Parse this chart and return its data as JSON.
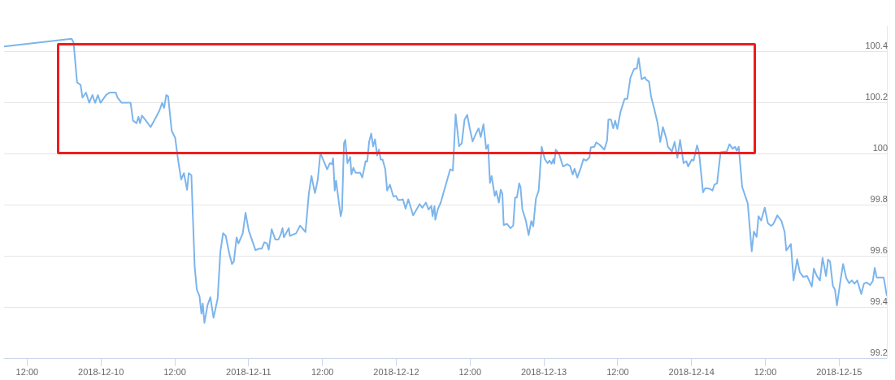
{
  "chart_data": {
    "type": "line",
    "color": "#7cb5ec",
    "marker": "none",
    "grid": "y",
    "legend": false,
    "xlim": [
      "2018-12-09T08:15",
      "2018-12-15T07:45"
    ],
    "xticks": [
      {
        "value": "2018-12-09T12:00",
        "label": "12:00"
      },
      "2018-12-10",
      {
        "value": "2018-12-10T12:00",
        "label": "12:00"
      },
      "2018-12-11",
      {
        "value": "2018-12-11T12:00",
        "label": "12:00"
      },
      "2018-12-12",
      {
        "value": "2018-12-12T12:00",
        "label": "12:00"
      },
      "2018-12-13",
      {
        "value": "2018-12-13T12:00",
        "label": "12:00"
      },
      "2018-12-14",
      {
        "value": "2018-12-14T12:00",
        "label": "12:00"
      },
      "2018-12-15"
    ],
    "ylim": [
      99.2,
      100.5
    ],
    "yticks": [
      99.2,
      99.4,
      99.6,
      99.8,
      100,
      100.2,
      100.4
    ],
    "x": [
      "2018-12-09T08:15",
      "2018-12-09T19:14",
      "2018-12-09T19:33",
      "2018-12-09T20:07",
      "2018-12-09T20:41",
      "2018-12-09T21:00",
      "2018-12-09T21:34",
      "2018-12-09T22:05",
      "2018-12-09T22:37",
      "2018-12-09T23:03",
      "2018-12-09T23:30",
      "2018-12-09T23:56",
      "2018-12-10T00:49",
      "2018-12-10T01:23",
      "2018-12-10T02:24",
      "2018-12-10T02:42",
      "2018-12-10T03:22",
      "2018-12-10T04:49",
      "2018-12-10T05:13",
      "2018-12-10T05:47",
      "2018-12-10T06:06",
      "2018-12-10T06:21",
      "2018-12-10T06:40",
      "2018-12-10T07:19",
      "2018-12-10T08:04",
      "2018-12-10T08:52",
      "2018-12-10T09:31",
      "2018-12-10T09:57",
      "2018-12-10T10:16",
      "2018-12-10T10:37",
      "2018-12-10T10:55",
      "2018-12-10T11:30",
      "2018-12-10T12:04",
      "2018-12-10T12:30",
      "2018-12-10T13:02",
      "2018-12-10T13:29",
      "2018-12-10T14:00",
      "2018-12-10T14:16",
      "2018-12-10T14:42",
      "2018-12-10T15:14",
      "2018-12-10T15:35",
      "2018-12-10T16:01",
      "2018-12-10T16:20",
      "2018-12-10T16:33",
      "2018-12-10T16:49",
      "2018-12-10T17:20",
      "2018-12-10T17:47",
      "2018-12-10T18:18",
      "2018-12-10T18:58",
      "2018-12-10T19:25",
      "2018-12-10T19:51",
      "2018-12-10T20:17",
      "2018-12-10T20:52",
      "2018-12-10T21:18",
      "2018-12-10T21:36",
      "2018-12-10T22:03",
      "2018-12-10T22:21",
      "2018-12-10T23:03",
      "2018-12-10T23:30",
      "2018-12-11T00:02",
      "2018-12-11T01:07",
      "2018-12-11T01:41",
      "2018-12-11T02:08",
      "2018-12-11T02:34",
      "2018-12-11T03:00",
      "2018-12-11T03:16",
      "2018-12-11T03:45",
      "2018-12-11T04:20",
      "2018-12-11T04:51",
      "2018-12-11T05:13",
      "2018-12-11T05:31",
      "2018-12-11T05:44",
      "2018-12-11T06:32",
      "2018-12-11T06:42",
      "2018-12-11T07:43",
      "2018-12-11T08:22",
      "2018-12-11T09:15",
      "2018-12-11T09:47",
      "2018-12-11T10:13",
      "2018-12-11T10:47",
      "2018-12-11T11:14",
      "2018-12-11T11:40",
      "2018-12-11T12:46",
      "2018-12-11T13:13",
      "2018-12-11T13:33",
      "2018-12-11T13:44",
      "2018-12-11T14:00",
      "2018-12-11T14:13",
      "2018-12-11T14:58",
      "2018-12-11T15:11",
      "2018-12-11T15:30",
      "2018-12-11T15:43",
      "2018-12-11T16:04",
      "2018-12-11T16:31",
      "2018-12-11T16:43",
      "2018-12-11T17:02",
      "2018-12-11T17:23",
      "2018-12-11T18:08",
      "2018-12-11T18:29",
      "2018-12-11T19:01",
      "2018-12-11T19:17",
      "2018-12-11T19:35",
      "2018-12-11T19:56",
      "2018-12-11T20:14",
      "2018-12-11T20:33",
      "2018-12-11T20:54",
      "2018-12-11T21:12",
      "2018-12-11T21:28",
      "2018-12-11T21:47",
      "2018-12-11T22:13",
      "2018-12-11T22:31",
      "2018-12-11T22:58",
      "2018-12-11T23:32",
      "2018-12-11T23:58",
      "2018-12-12T00:17",
      "2018-12-12T00:44",
      "2018-12-12T01:05",
      "2018-12-12T01:31",
      "2018-12-12T01:57",
      "2018-12-12T02:45",
      "2018-12-12T03:48",
      "2018-12-12T04:15",
      "2018-12-12T04:49",
      "2018-12-12T05:15",
      "2018-12-12T05:42",
      "2018-12-12T05:54",
      "2018-12-12T06:13",
      "2018-12-12T06:21",
      "2018-12-12T06:47",
      "2018-12-12T07:14",
      "2018-12-12T07:40",
      "2018-12-12T08:12",
      "2018-12-12T08:46",
      "2018-12-12T09:12",
      "2018-12-12T09:39",
      "2018-12-12T10:13",
      "2018-12-12T10:39",
      "2018-12-12T11:06",
      "2018-12-12T11:32",
      "2018-12-12T11:58",
      "2018-12-12T12:25",
      "2018-12-12T12:57",
      "2018-12-12T13:23",
      "2018-12-12T13:44",
      "2018-12-12T14:11",
      "2018-12-12T14:37",
      "2018-12-12T14:56",
      "2018-12-12T15:14",
      "2018-12-12T15:30",
      "2018-12-12T16:01",
      "2018-12-12T16:15",
      "2018-12-12T16:41",
      "2018-12-12T16:59",
      "2018-12-12T17:15",
      "2018-12-12T17:28",
      "2018-12-12T18:00",
      "2018-12-12T18:34",
      "2018-12-12T19:01",
      "2018-12-12T19:19",
      "2018-12-12T19:37",
      "2018-12-12T19:59",
      "2018-12-12T20:12",
      "2018-12-12T20:30",
      "2018-12-12T21:04",
      "2018-12-12T21:31",
      "2018-12-12T21:57",
      "2018-12-12T22:16",
      "2018-12-12T22:42",
      "2018-12-12T23:09",
      "2018-12-12T23:38",
      "2018-12-13T00:09",
      "2018-12-13T00:36",
      "2018-12-13T00:54",
      "2018-12-13T01:15",
      "2018-12-13T01:33",
      "2018-12-13T01:41",
      "2018-12-13T01:55",
      "2018-12-13T02:29",
      "2018-12-13T03:06",
      "2018-12-13T03:48",
      "2018-12-13T04:15",
      "2018-12-13T04:41",
      "2018-12-13T04:59",
      "2018-12-13T05:26",
      "2018-12-13T06:00",
      "2018-12-13T06:26",
      "2018-12-13T06:53",
      "2018-12-13T07:25",
      "2018-12-13T07:37",
      "2018-12-13T08:12",
      "2018-12-13T08:30",
      "2018-12-13T09:04",
      "2018-12-13T09:23",
      "2018-12-13T09:49",
      "2018-12-13T10:16",
      "2018-12-13T10:29",
      "2018-12-13T10:55",
      "2018-12-13T11:16",
      "2018-12-13T11:35",
      "2018-12-13T11:56",
      "2018-12-13T12:28",
      "2018-12-13T13:07",
      "2018-12-13T13:33",
      "2018-12-13T14:05",
      "2018-12-13T14:40",
      "2018-12-13T15:06",
      "2018-12-13T15:24",
      "2018-12-13T15:53",
      "2018-12-13T16:25",
      "2018-12-13T16:38",
      "2018-12-13T17:05",
      "2018-12-13T17:26",
      "2018-12-13T17:58",
      "2018-12-13T18:29",
      "2018-12-13T18:55",
      "2018-12-13T19:21",
      "2018-12-13T19:56",
      "2018-12-13T20:09",
      "2018-12-13T20:49",
      "2018-12-13T21:15",
      "2018-12-13T21:42",
      "2018-12-13T22:08",
      "2018-12-13T22:42",
      "2018-12-13T23:09",
      "2018-12-13T23:27",
      "2018-12-14T00:02",
      "2018-12-14T00:20",
      "2018-12-14T00:54",
      "2018-12-14T01:13",
      "2018-12-14T01:52",
      "2018-12-14T02:13",
      "2018-12-14T02:58",
      "2018-12-14T03:24",
      "2018-12-14T03:43",
      "2018-12-14T04:09",
      "2018-12-14T04:43",
      "2018-12-14T05:44",
      "2018-12-14T06:10",
      "2018-12-14T06:42",
      "2018-12-14T07:03",
      "2018-12-14T07:21",
      "2018-12-14T07:40",
      "2018-12-14T08:14",
      "2018-12-14T09:08",
      "2018-12-14T09:47",
      "2018-12-14T10:08",
      "2018-12-14T10:35",
      "2018-12-14T10:53",
      "2018-12-14T11:19",
      "2018-12-14T11:54",
      "2018-12-14T12:25",
      "2018-12-14T12:57",
      "2018-12-14T13:18",
      "2018-12-14T13:31",
      "2018-12-14T13:57",
      "2018-12-14T14:37",
      "2018-12-14T15:08",
      "2018-12-14T15:24",
      "2018-12-14T16:09",
      "2018-12-14T16:35",
      "2018-12-14T17:10",
      "2018-12-14T17:36",
      "2018-12-14T18:08",
      "2018-12-14T18:47",
      "2018-12-14T19:33",
      "2018-12-14T19:53",
      "2018-12-14T20:20",
      "2018-12-14T20:52",
      "2018-12-14T21:18",
      "2018-12-14T21:52",
      "2018-12-14T22:11",
      "2018-12-14T22:31",
      "2018-12-14T22:58",
      "2018-12-14T23:19",
      "2018-12-14T23:38",
      "2018-12-15T00:12",
      "2018-12-15T00:38",
      "2018-12-15T01:10",
      "2018-12-15T01:37",
      "2018-12-15T02:03",
      "2018-12-15T02:29",
      "2018-12-15T02:56",
      "2018-12-15T03:35",
      "2018-12-15T04:01",
      "2018-12-15T04:27",
      "2018-12-15T05:02",
      "2018-12-15T05:28",
      "2018-12-15T05:47",
      "2018-12-15T06:06",
      "2018-12-15T07:14",
      "2018-12-15T07:45"
    ],
    "values": [
      100.42,
      100.45,
      100.435,
      100.28,
      100.27,
      100.22,
      100.24,
      100.2,
      100.23,
      100.2,
      100.23,
      100.2,
      100.23,
      100.24,
      100.24,
      100.22,
      100.2,
      100.2,
      100.13,
      100.12,
      100.145,
      100.12,
      100.15,
      100.13,
      100.105,
      100.14,
      100.17,
      100.2,
      100.18,
      100.23,
      100.225,
      100.09,
      100.063,
      99.983,
      99.9,
      99.925,
      99.86,
      99.925,
      99.917,
      99.56,
      99.47,
      99.445,
      99.376,
      99.416,
      99.34,
      99.41,
      99.44,
      99.36,
      99.435,
      99.62,
      99.69,
      99.68,
      99.61,
      99.57,
      99.58,
      99.674,
      99.65,
      99.69,
      99.77,
      99.7,
      99.624,
      99.63,
      99.63,
      99.655,
      99.65,
      99.626,
      99.706,
      99.666,
      99.666,
      99.685,
      99.71,
      99.674,
      99.71,
      99.68,
      99.69,
      99.72,
      99.695,
      99.844,
      99.914,
      99.847,
      99.898,
      100.004,
      99.94,
      99.964,
      99.96,
      99.983,
      99.857,
      99.896,
      99.757,
      99.78,
      100.042,
      100.055,
      99.964,
      99.988,
      99.92,
      99.946,
      99.927,
      99.927,
      99.908,
      99.972,
      99.97,
      100.047,
      100.08,
      100.03,
      100.057,
      99.994,
      100.017,
      99.978,
      99.978,
      99.94,
      99.857,
      99.88,
      99.834,
      99.836,
      99.82,
      99.82,
      99.823,
      99.786,
      99.823,
      99.76,
      99.804,
      99.79,
      99.81,
      99.783,
      99.797,
      99.757,
      99.796,
      99.743,
      99.786,
      99.81,
      99.847,
      99.892,
      99.94,
      99.935,
      100.155,
      100.03,
      100.042,
      100.134,
      100.153,
      100.098,
      100.049,
      100.079,
      100.1,
      100.066,
      100.116,
      100.02,
      100.036,
      99.887,
      99.914,
      99.836,
      99.855,
      99.81,
      99.86,
      99.845,
      99.722,
      99.727,
      99.71,
      99.72,
      99.83,
      99.83,
      99.885,
      99.871,
      99.783,
      99.74,
      99.683,
      99.738,
      99.717,
      99.825,
      99.857,
      100.028,
      99.98,
      99.964,
      99.974,
      99.962,
      99.98,
      99.962,
      100.017,
      99.999,
      99.951,
      99.96,
      99.953,
      99.92,
      99.942,
      99.908,
      99.946,
      99.98,
      99.974,
      99.987,
      100.026,
      100.028,
      100.045,
      100.036,
      100.028,
      100.017,
      100.052,
      100.134,
      100.134,
      100.1,
      100.13,
      100.098,
      100.166,
      100.215,
      100.215,
      100.3,
      100.332,
      100.334,
      100.375,
      100.292,
      100.3,
      100.29,
      100.283,
      100.223,
      100.173,
      100.12,
      100.047,
      100.105,
      100.057,
      100.028,
      100.01,
      100.047,
      99.985,
      100.055,
      99.964,
      99.972,
      99.951,
      99.978,
      99.974,
      100.034,
      100.006,
      99.85,
      99.866,
      99.864,
      99.857,
      99.88,
      99.885,
      100.007,
      100.01,
      100.038,
      100.02,
      100.028,
      100.013,
      100.028,
      99.871,
      99.807,
      99.62,
      99.697,
      99.676,
      99.757,
      99.74,
      99.79,
      99.729,
      99.719,
      99.727,
      99.738,
      99.76,
      99.738,
      99.695,
      99.623,
      99.648,
      99.506,
      99.589,
      99.538,
      99.52,
      99.523,
      99.482,
      99.552,
      99.525,
      99.506,
      99.594,
      99.523,
      99.587,
      99.58,
      99.485,
      99.47,
      99.408,
      99.504,
      99.57,
      99.514,
      99.495,
      99.506,
      99.493,
      99.506,
      99.453,
      99.493,
      99.498,
      99.488,
      99.504,
      99.555,
      99.517,
      99.517,
      99.445
    ]
  }
}
